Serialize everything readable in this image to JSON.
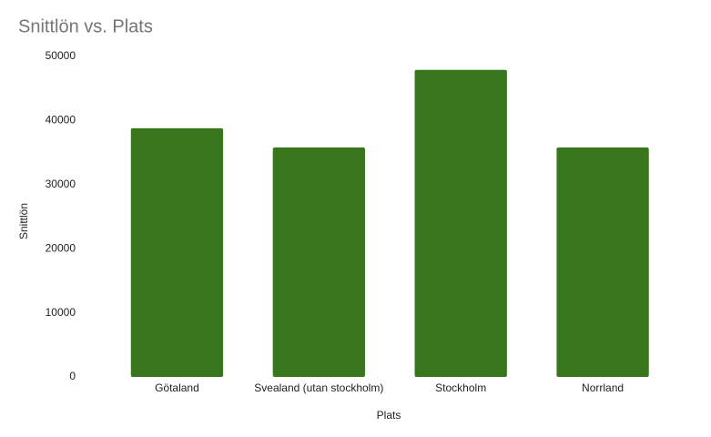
{
  "chart_data": {
    "type": "bar",
    "title": "Snittlön vs. Plats",
    "x_label": "Plats",
    "y_label": "Snittlön",
    "categories": [
      "Götaland",
      "Svealand (utan stockholm)",
      "Stockholm",
      "Norrland"
    ],
    "values": [
      38800,
      35800,
      47900,
      35800
    ],
    "color": "#38761d",
    "ylim": [
      0,
      50000
    ],
    "yticks": [
      0,
      10000,
      20000,
      30000,
      40000,
      50000
    ],
    "grid": false
  }
}
